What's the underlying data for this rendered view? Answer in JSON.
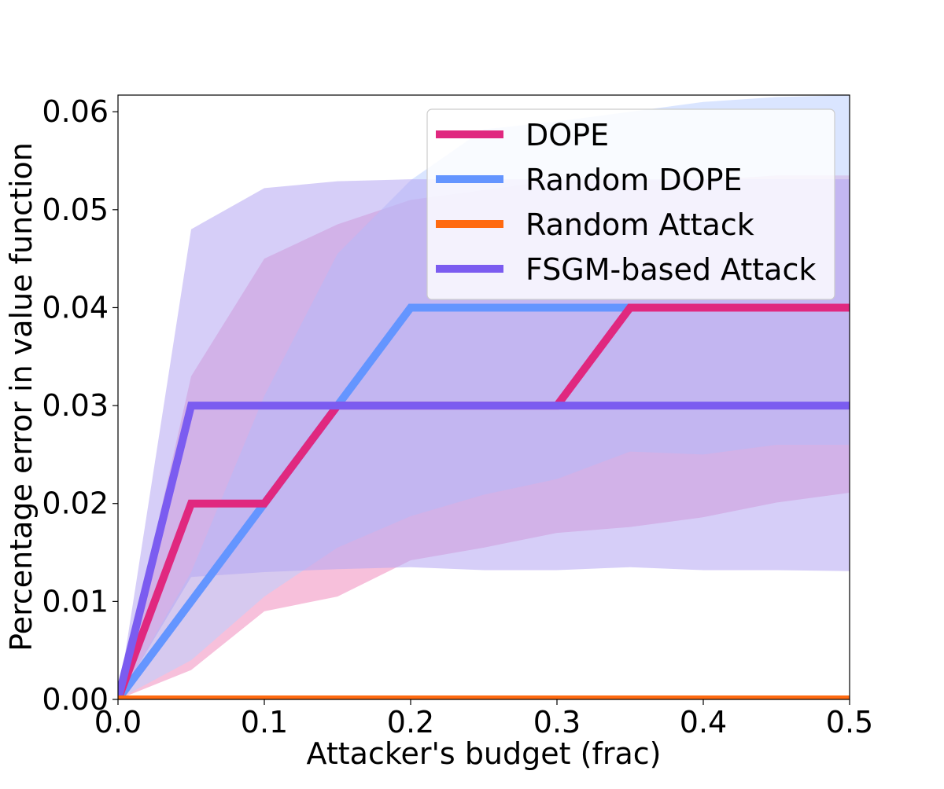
{
  "chart_data": {
    "type": "line",
    "title": "",
    "xlabel": "Attacker's budget (frac)",
    "ylabel": "Percentage error in value function",
    "xlim": [
      0.0,
      0.5
    ],
    "ylim": [
      0.0,
      0.0617
    ],
    "x_ticks": [
      0.0,
      0.1,
      0.2,
      0.3,
      0.4,
      0.5
    ],
    "x_tick_labels": [
      "0.0",
      "0.1",
      "0.2",
      "0.3",
      "0.4",
      "0.5"
    ],
    "y_ticks": [
      0.0,
      0.01,
      0.02,
      0.03,
      0.04,
      0.05,
      0.06
    ],
    "y_tick_labels": [
      "0.00",
      "0.01",
      "0.02",
      "0.03",
      "0.04",
      "0.05",
      "0.06"
    ],
    "grid": false,
    "legend_position": "top-right",
    "x": [
      0.0,
      0.05,
      0.1,
      0.15,
      0.2,
      0.25,
      0.3,
      0.35,
      0.4,
      0.45,
      0.5
    ],
    "series": [
      {
        "name": "DOPE",
        "color": "#e0287f",
        "band_color": "#f08cbe",
        "values": [
          0.0,
          0.02,
          0.02,
          0.03,
          0.03,
          0.03,
          0.03,
          0.04,
          0.04,
          0.04,
          0.04
        ],
        "band_upper": [
          0.0,
          0.033,
          0.045,
          0.0485,
          0.051,
          0.052,
          0.053,
          0.053,
          0.053,
          0.0535,
          0.0535
        ],
        "band_lower": [
          0.0,
          0.003,
          0.009,
          0.0105,
          0.0142,
          0.0155,
          0.017,
          0.0176,
          0.0186,
          0.0201,
          0.0211
        ]
      },
      {
        "name": "Random DOPE",
        "color": "#6495ff",
        "band_color": "#bcd0ff",
        "values": [
          0.0,
          0.01,
          0.02,
          0.03,
          0.04,
          0.04,
          0.04,
          0.04,
          0.04,
          0.04,
          0.04
        ],
        "band_upper": [
          0.0,
          0.013,
          0.031,
          0.0455,
          0.053,
          0.0582,
          0.059,
          0.06,
          0.061,
          0.0615,
          0.0617
        ],
        "band_lower": [
          0.0,
          0.004,
          0.0105,
          0.0155,
          0.0187,
          0.0209,
          0.0225,
          0.0253,
          0.025,
          0.026,
          0.026
        ]
      },
      {
        "name": "Random Attack",
        "color": "#ff6a10",
        "band_color": "#ffb482",
        "values": [
          0.0,
          0.0,
          0.0,
          0.0,
          0.0,
          0.0,
          0.0,
          0.0,
          0.0,
          0.0,
          0.0
        ],
        "band_upper": [
          0.0,
          0.0,
          0.0,
          0.0,
          0.0,
          0.0,
          0.0,
          0.0,
          0.0,
          0.0,
          0.0
        ],
        "band_lower": [
          0.0,
          0.0,
          0.0,
          0.0,
          0.0,
          0.0,
          0.0,
          0.0,
          0.0,
          0.0,
          0.0
        ]
      },
      {
        "name": "FSGM-based Attack",
        "color": "#7b5cf0",
        "band_color": "#b4a6f2",
        "values": [
          0.0,
          0.03,
          0.03,
          0.03,
          0.03,
          0.03,
          0.03,
          0.03,
          0.03,
          0.03,
          0.03
        ],
        "band_upper": [
          0.0,
          0.048,
          0.0522,
          0.0529,
          0.0531,
          0.0531,
          0.0531,
          0.0531,
          0.0531,
          0.0531,
          0.0531
        ],
        "band_lower": [
          0.0,
          0.0125,
          0.013,
          0.0133,
          0.0135,
          0.0132,
          0.0132,
          0.0135,
          0.0132,
          0.0132,
          0.0131
        ]
      }
    ]
  }
}
